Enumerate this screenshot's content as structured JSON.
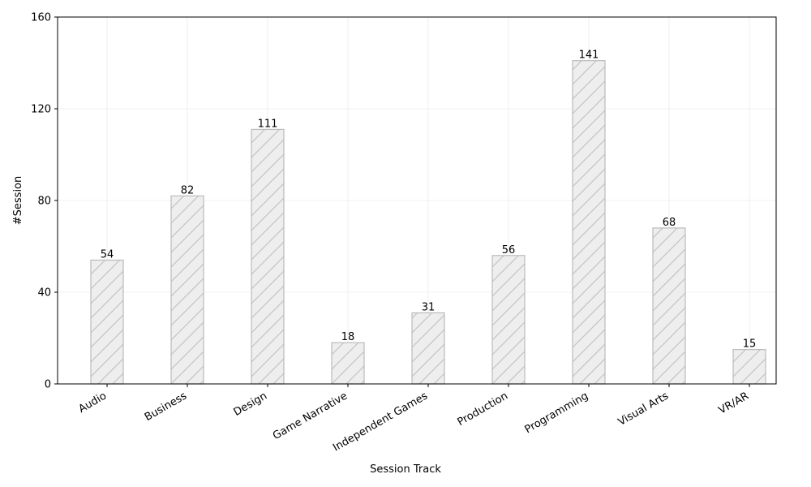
{
  "chart_data": {
    "type": "bar",
    "title": "",
    "xlabel": "Session Track",
    "ylabel": "#Session",
    "categories": [
      "Audio",
      "Business",
      "Design",
      "Game Narrative",
      "Independent Games",
      "Production",
      "Programming",
      "Visual Arts",
      "VR/AR"
    ],
    "values": [
      54,
      82,
      111,
      18,
      31,
      56,
      141,
      68,
      15
    ],
    "ylim": [
      0,
      160
    ],
    "yticks": [
      0,
      40,
      80,
      120,
      160
    ],
    "grid": true,
    "legend": "none",
    "bar_fill": "#eeeeee",
    "bar_edge": "#bbbbbb",
    "hatch": "diagonal"
  }
}
